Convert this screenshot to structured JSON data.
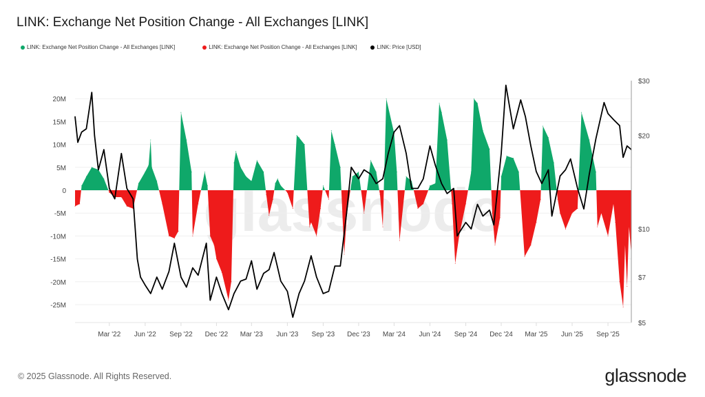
{
  "title": "LINK: Exchange Net Position Change - All Exchanges [LINK]",
  "legend": [
    {
      "label": "LINK: Exchange Net Position Change - All Exchanges [LINK]",
      "color": "#0fa86a"
    },
    {
      "label": "LINK: Exchange Net Position Change - All Exchanges [LINK]",
      "color": "#ee1b1b"
    },
    {
      "label": "LINK: Price [USD]",
      "color": "#000000"
    }
  ],
  "footer": "© 2025 Glassnode. All Rights Reserved.",
  "logo": "glassnode",
  "watermark": "glassnode",
  "chart_data": {
    "type": "area+line",
    "x_range": [
      "2021-12-03",
      "2025-10-31"
    ],
    "x_ticks": [
      {
        "date": "2022-03-01",
        "label": "Mar '22"
      },
      {
        "date": "2022-06-01",
        "label": "Jun '22"
      },
      {
        "date": "2022-09-01",
        "label": "Sep '22"
      },
      {
        "date": "2022-12-01",
        "label": "Dec '22"
      },
      {
        "date": "2023-03-01",
        "label": "Mar '23"
      },
      {
        "date": "2023-06-01",
        "label": "Jun '23"
      },
      {
        "date": "2023-09-01",
        "label": "Sep '23"
      },
      {
        "date": "2023-12-01",
        "label": "Dec '23"
      },
      {
        "date": "2024-03-01",
        "label": "Mar '24"
      },
      {
        "date": "2024-06-01",
        "label": "Jun '24"
      },
      {
        "date": "2024-09-01",
        "label": "Sep '24"
      },
      {
        "date": "2024-12-01",
        "label": "Dec '24"
      },
      {
        "date": "2025-03-01",
        "label": "Mar '25"
      },
      {
        "date": "2025-06-01",
        "label": "Jun '25"
      },
      {
        "date": "2025-09-01",
        "label": "Sep '25"
      }
    ],
    "left_axis": {
      "ylim": [
        -27500000,
        24000000
      ],
      "ticks": [
        20000000,
        15000000,
        10000000,
        5000000,
        0,
        -5000000,
        -10000000,
        -15000000,
        -20000000,
        -25000000
      ],
      "tick_labels": [
        "20M",
        "15M",
        "10M",
        "5M",
        "0",
        "-5M",
        "-10M",
        "-15M",
        "-20M",
        "-25M"
      ],
      "grid": true
    },
    "right_axis": {
      "scale": "log",
      "ylim": [
        5,
        30
      ],
      "ticks": [
        30,
        20,
        10,
        7,
        5
      ],
      "tick_labels": [
        "$30",
        "$20",
        "$10",
        "$7",
        "$5"
      ]
    },
    "colors": {
      "positive": "#0fa86a",
      "negative": "#ee1b1b",
      "price": "#000000"
    },
    "net_position_change": [
      [
        "2021-12-03",
        -3500000
      ],
      [
        "2021-12-15",
        -3000000
      ],
      [
        "2021-12-20",
        1000000
      ],
      [
        "2022-01-01",
        3000000
      ],
      [
        "2022-01-15",
        5000000
      ],
      [
        "2022-02-01",
        4500000
      ],
      [
        "2022-02-15",
        2500000
      ],
      [
        "2022-03-01",
        -500000
      ],
      [
        "2022-03-15",
        -1500000
      ],
      [
        "2022-04-01",
        -1500000
      ],
      [
        "2022-04-15",
        -3500000
      ],
      [
        "2022-05-01",
        -4000000
      ],
      [
        "2022-05-15",
        1500000
      ],
      [
        "2022-06-01",
        4000000
      ],
      [
        "2022-06-10",
        5500000
      ],
      [
        "2022-06-15",
        11000000
      ],
      [
        "2022-06-18",
        5000000
      ],
      [
        "2022-07-01",
        2000000
      ],
      [
        "2022-07-15",
        -3000000
      ],
      [
        "2022-08-01",
        -10000000
      ],
      [
        "2022-08-15",
        -10500000
      ],
      [
        "2022-08-25",
        -9000000
      ],
      [
        "2022-09-01",
        17000000
      ],
      [
        "2022-09-15",
        11000000
      ],
      [
        "2022-09-28",
        4000000
      ],
      [
        "2022-10-01",
        -10000000
      ],
      [
        "2022-10-15",
        -3000000
      ],
      [
        "2022-11-01",
        4000000
      ],
      [
        "2022-11-08",
        1000000
      ],
      [
        "2022-11-15",
        -10000000
      ],
      [
        "2022-11-25",
        -12000000
      ],
      [
        "2022-12-01",
        -15000000
      ],
      [
        "2022-12-15",
        -18000000
      ],
      [
        "2023-01-01",
        -24000000
      ],
      [
        "2023-01-08",
        -20000000
      ],
      [
        "2023-01-15",
        6000000
      ],
      [
        "2023-01-20",
        8500000
      ],
      [
        "2023-02-01",
        5000000
      ],
      [
        "2023-02-15",
        3000000
      ],
      [
        "2023-03-01",
        2000000
      ],
      [
        "2023-03-15",
        6500000
      ],
      [
        "2023-04-01",
        4000000
      ],
      [
        "2023-04-08",
        -1000000
      ],
      [
        "2023-04-15",
        -5500000
      ],
      [
        "2023-04-25",
        -2000000
      ],
      [
        "2023-05-01",
        1500000
      ],
      [
        "2023-05-07",
        2500000
      ],
      [
        "2023-05-15",
        1000000
      ],
      [
        "2023-06-01",
        -500000
      ],
      [
        "2023-06-15",
        -4000000
      ],
      [
        "2023-06-25",
        12000000
      ],
      [
        "2023-07-01",
        11500000
      ],
      [
        "2023-07-15",
        10000000
      ],
      [
        "2023-07-28",
        -8000000
      ],
      [
        "2023-08-01",
        -7000000
      ],
      [
        "2023-08-15",
        -10000000
      ],
      [
        "2023-08-25",
        -4000000
      ],
      [
        "2023-09-01",
        1000000
      ],
      [
        "2023-09-15",
        -2000000
      ],
      [
        "2023-09-22",
        13000000
      ],
      [
        "2023-10-01",
        10000000
      ],
      [
        "2023-10-15",
        5000000
      ],
      [
        "2023-10-25",
        -14000000
      ],
      [
        "2023-11-01",
        -5000000
      ],
      [
        "2023-11-15",
        3000000
      ],
      [
        "2023-12-01",
        4000000
      ],
      [
        "2023-12-15",
        -5000000
      ],
      [
        "2024-01-01",
        6500000
      ],
      [
        "2024-01-15",
        4000000
      ],
      [
        "2024-01-25",
        -1000000
      ],
      [
        "2024-02-01",
        -8000000
      ],
      [
        "2024-02-10",
        20000000
      ],
      [
        "2024-03-01",
        12500000
      ],
      [
        "2024-03-08",
        4000000
      ],
      [
        "2024-03-15",
        -11000000
      ],
      [
        "2024-04-01",
        3000000
      ],
      [
        "2024-04-15",
        2000000
      ],
      [
        "2024-05-01",
        -4000000
      ],
      [
        "2024-05-15",
        -3000000
      ],
      [
        "2024-06-01",
        1000000
      ],
      [
        "2024-06-15",
        1500000
      ],
      [
        "2024-06-25",
        19000000
      ],
      [
        "2024-07-01",
        17000000
      ],
      [
        "2024-07-15",
        11000000
      ],
      [
        "2024-07-28",
        -3000000
      ],
      [
        "2024-08-05",
        -16000000
      ],
      [
        "2024-08-15",
        -10000000
      ],
      [
        "2024-09-01",
        -3000000
      ],
      [
        "2024-09-15",
        4000000
      ],
      [
        "2024-09-22",
        20000000
      ],
      [
        "2024-10-01",
        19000000
      ],
      [
        "2024-10-15",
        13000000
      ],
      [
        "2024-11-01",
        9000000
      ],
      [
        "2024-11-08",
        -5000000
      ],
      [
        "2024-11-15",
        -12000000
      ],
      [
        "2024-11-28",
        -6000000
      ],
      [
        "2024-12-01",
        3000000
      ],
      [
        "2024-12-15",
        7500000
      ],
      [
        "2025-01-01",
        7000000
      ],
      [
        "2025-01-15",
        4000000
      ],
      [
        "2025-01-30",
        -14500000
      ],
      [
        "2025-02-15",
        -12000000
      ],
      [
        "2025-03-01",
        -7000000
      ],
      [
        "2025-03-12",
        -2000000
      ],
      [
        "2025-03-18",
        14000000
      ],
      [
        "2025-04-01",
        11500000
      ],
      [
        "2025-04-15",
        6000000
      ],
      [
        "2025-04-25",
        -2000000
      ],
      [
        "2025-05-01",
        -5000000
      ],
      [
        "2025-05-15",
        -8500000
      ],
      [
        "2025-06-01",
        -5000000
      ],
      [
        "2025-06-15",
        -4000000
      ],
      [
        "2025-06-25",
        17000000
      ],
      [
        "2025-07-15",
        11000000
      ],
      [
        "2025-08-01",
        4000000
      ],
      [
        "2025-08-05",
        -8000000
      ],
      [
        "2025-08-15",
        -5000000
      ],
      [
        "2025-09-01",
        -10000000
      ],
      [
        "2025-09-15",
        -3000000
      ],
      [
        "2025-09-20",
        -7000000
      ],
      [
        "2025-10-01",
        -20000000
      ],
      [
        "2025-10-10",
        -25500000
      ],
      [
        "2025-10-15",
        -12000000
      ],
      [
        "2025-10-20",
        -21000000
      ],
      [
        "2025-10-25",
        -8000000
      ],
      [
        "2025-10-31",
        -14000000
      ]
    ],
    "price": [
      [
        "2021-12-03",
        23
      ],
      [
        "2021-12-10",
        19
      ],
      [
        "2021-12-20",
        20.5
      ],
      [
        "2022-01-01",
        21
      ],
      [
        "2022-01-15",
        27.5
      ],
      [
        "2022-01-22",
        20
      ],
      [
        "2022-02-01",
        15.5
      ],
      [
        "2022-02-15",
        18
      ],
      [
        "2022-03-01",
        13.5
      ],
      [
        "2022-03-15",
        12.5
      ],
      [
        "2022-04-01",
        17.5
      ],
      [
        "2022-04-15",
        13.5
      ],
      [
        "2022-05-01",
        12.5
      ],
      [
        "2022-05-12",
        8
      ],
      [
        "2022-05-20",
        7
      ],
      [
        "2022-06-01",
        6.6
      ],
      [
        "2022-06-15",
        6.2
      ],
      [
        "2022-07-01",
        7
      ],
      [
        "2022-07-15",
        6.4
      ],
      [
        "2022-08-01",
        7.3
      ],
      [
        "2022-08-15",
        9
      ],
      [
        "2022-09-01",
        7
      ],
      [
        "2022-09-15",
        6.5
      ],
      [
        "2022-10-01",
        7.5
      ],
      [
        "2022-10-15",
        7.1
      ],
      [
        "2022-11-05",
        9
      ],
      [
        "2022-11-15",
        5.9
      ],
      [
        "2022-12-01",
        7
      ],
      [
        "2022-12-15",
        6.2
      ],
      [
        "2023-01-01",
        5.5
      ],
      [
        "2023-01-15",
        6.2
      ],
      [
        "2023-02-01",
        6.8
      ],
      [
        "2023-02-15",
        6.9
      ],
      [
        "2023-03-01",
        7.9
      ],
      [
        "2023-03-15",
        6.4
      ],
      [
        "2023-04-01",
        7.2
      ],
      [
        "2023-04-15",
        7.4
      ],
      [
        "2023-04-28",
        8.4
      ],
      [
        "2023-05-15",
        6.8
      ],
      [
        "2023-06-01",
        6.3
      ],
      [
        "2023-06-15",
        5.2
      ],
      [
        "2023-07-01",
        6.2
      ],
      [
        "2023-07-15",
        6.8
      ],
      [
        "2023-08-01",
        8.2
      ],
      [
        "2023-08-15",
        7
      ],
      [
        "2023-09-01",
        6.2
      ],
      [
        "2023-09-15",
        6.3
      ],
      [
        "2023-10-01",
        7.6
      ],
      [
        "2023-10-15",
        7.6
      ],
      [
        "2023-11-01",
        11.5
      ],
      [
        "2023-11-12",
        15.8
      ],
      [
        "2023-12-01",
        14.5
      ],
      [
        "2023-12-15",
        15.5
      ],
      [
        "2024-01-01",
        15
      ],
      [
        "2024-01-15",
        14
      ],
      [
        "2024-02-01",
        14.5
      ],
      [
        "2024-02-15",
        17.5
      ],
      [
        "2024-03-01",
        20.5
      ],
      [
        "2024-03-15",
        21.5
      ],
      [
        "2024-04-01",
        17.5
      ],
      [
        "2024-04-15",
        13.5
      ],
      [
        "2024-05-01",
        13.5
      ],
      [
        "2024-05-15",
        14.5
      ],
      [
        "2024-06-01",
        18.5
      ],
      [
        "2024-06-15",
        16
      ],
      [
        "2024-07-01",
        14
      ],
      [
        "2024-07-15",
        13
      ],
      [
        "2024-08-01",
        13.5
      ],
      [
        "2024-08-10",
        9.5
      ],
      [
        "2024-09-01",
        10.5
      ],
      [
        "2024-09-15",
        10
      ],
      [
        "2024-10-01",
        12
      ],
      [
        "2024-10-15",
        11
      ],
      [
        "2024-11-01",
        11.5
      ],
      [
        "2024-11-12",
        10.3
      ],
      [
        "2024-12-01",
        17.5
      ],
      [
        "2024-12-13",
        29
      ],
      [
        "2025-01-01",
        21
      ],
      [
        "2025-01-20",
        26
      ],
      [
        "2025-02-01",
        23
      ],
      [
        "2025-02-15",
        18.5
      ],
      [
        "2025-03-01",
        15.3
      ],
      [
        "2025-03-15",
        14
      ],
      [
        "2025-04-01",
        15.5
      ],
      [
        "2025-04-10",
        11
      ],
      [
        "2025-05-01",
        14.8
      ],
      [
        "2025-05-15",
        15.5
      ],
      [
        "2025-05-28",
        16.8
      ],
      [
        "2025-06-15",
        13.5
      ],
      [
        "2025-07-01",
        11.6
      ],
      [
        "2025-07-15",
        15
      ],
      [
        "2025-08-01",
        19.5
      ],
      [
        "2025-08-22",
        25.5
      ],
      [
        "2025-09-01",
        23.5
      ],
      [
        "2025-09-15",
        22.5
      ],
      [
        "2025-10-01",
        21.5
      ],
      [
        "2025-10-10",
        17
      ],
      [
        "2025-10-20",
        18.5
      ],
      [
        "2025-10-31",
        18
      ]
    ]
  }
}
